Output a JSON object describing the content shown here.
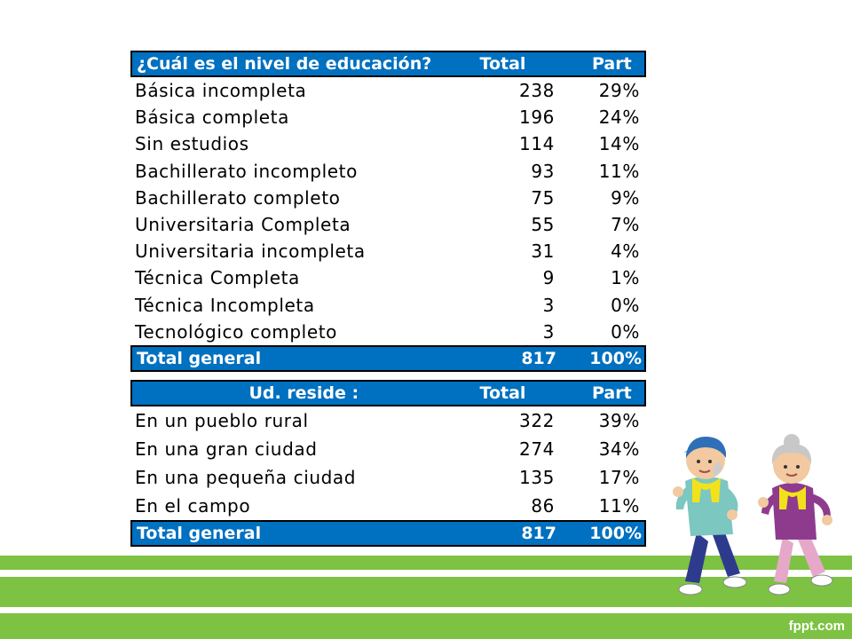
{
  "table1": {
    "header": {
      "label": "¿Cuál es el nivel de educación?",
      "total": "Total",
      "part": "Part"
    },
    "rows": [
      {
        "label": "Básica incompleta",
        "total": "238",
        "part": "29%"
      },
      {
        "label": "Básica completa",
        "total": "196",
        "part": "24%"
      },
      {
        "label": "Sin estudios",
        "total": "114",
        "part": "14%"
      },
      {
        "label": "Bachillerato incompleto",
        "total": "93",
        "part": "11%"
      },
      {
        "label": "Bachillerato completo",
        "total": "75",
        "part": "9%"
      },
      {
        "label": "Universitaria Completa",
        "total": "55",
        "part": "7%"
      },
      {
        "label": "Universitaria incompleta",
        "total": "31",
        "part": "4%"
      },
      {
        "label": "Técnica Completa",
        "total": "9",
        "part": "1%"
      },
      {
        "label": "Técnica Incompleta",
        "total": "3",
        "part": "0%"
      },
      {
        "label": "Tecnológico completo",
        "total": "3",
        "part": "0%"
      }
    ],
    "footer": {
      "label": "Total general",
      "total": "817",
      "part": "100%"
    }
  },
  "table2": {
    "header": {
      "label": "Ud. reside :",
      "total": "Total",
      "part": "Part"
    },
    "rows": [
      {
        "label": "En un pueblo rural",
        "total": "322",
        "part": "39%"
      },
      {
        "label": "En una gran ciudad",
        "total": "274",
        "part": "34%"
      },
      {
        "label": "En una pequeña ciudad",
        "total": "135",
        "part": "17%"
      },
      {
        "label": "En el campo",
        "total": "86",
        "part": "11%"
      }
    ],
    "footer": {
      "label": "Total general",
      "total": "817",
      "part": "100%"
    }
  },
  "brand": "fppt.com",
  "colors": {
    "header_bg": "#0070c0",
    "ground": "#7dc243"
  },
  "illustration": {
    "icon": "elderly-couple-jogging-icon"
  }
}
